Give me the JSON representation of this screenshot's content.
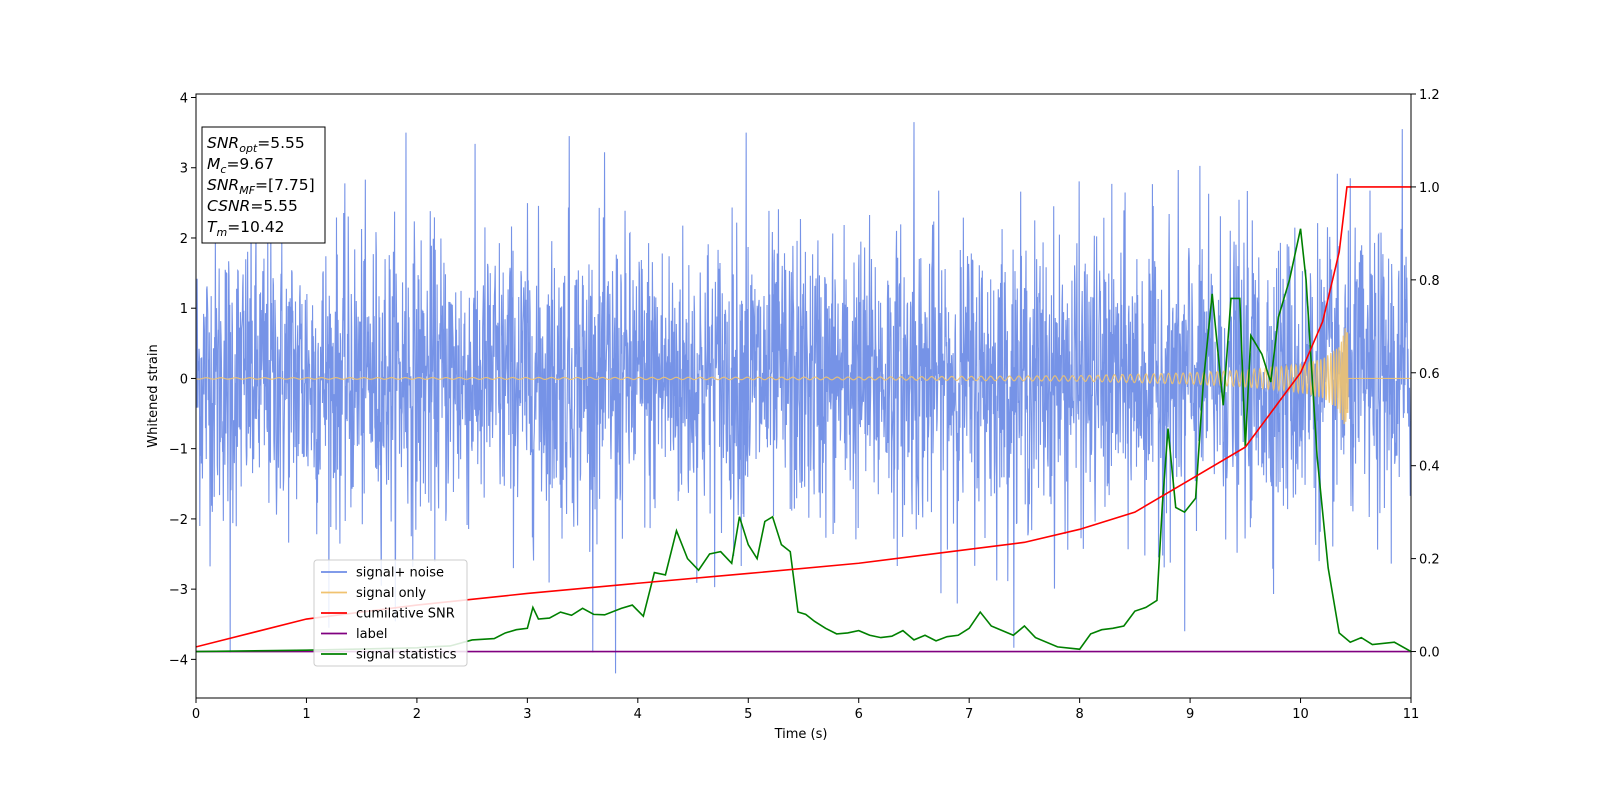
{
  "chart_data": {
    "type": "line",
    "xlabel": "Time (s)",
    "ylabel": "Whitened strain",
    "xlim": [
      0,
      11
    ],
    "ylim": [
      -4.55,
      4.05
    ],
    "ylim_right": [
      -0.1,
      1.2
    ],
    "x_ticks": [
      "0",
      "1",
      "2",
      "3",
      "4",
      "5",
      "6",
      "7",
      "8",
      "9",
      "10",
      "11"
    ],
    "y_ticks": [
      "−4",
      "−3",
      "−2",
      "−1",
      "0",
      "1",
      "2",
      "3",
      "4"
    ],
    "y_ticks_right": [
      "0.0",
      "0.2",
      "0.4",
      "0.6",
      "0.8",
      "1.0",
      "1.2"
    ],
    "grid": false,
    "legend_position": "lower-left",
    "annotation": [
      {
        "name": "SNR",
        "sub": "opt",
        "value": "=5.55"
      },
      {
        "name": "M",
        "sub": "c",
        "value": "=9.67"
      },
      {
        "name": "SNR",
        "sub": "MF",
        "value": "=[7.75]"
      },
      {
        "name": "CSNR",
        "sub": "",
        "value": "=5.55"
      },
      {
        "name": "T",
        "sub": "m",
        "value": "=10.42"
      }
    ],
    "series": [
      {
        "name": "signal+ noise",
        "axis": "left",
        "color": "#6f8de6",
        "note": "whitened noise, approx. unit variance, range about -4.2 to 3.65",
        "peaks": [
          {
            "x": 0.31,
            "y": -3.9
          },
          {
            "x": 1.9,
            "y": 3.5
          },
          {
            "x": 3.38,
            "y": 3.45
          },
          {
            "x": 3.8,
            "y": -4.2
          },
          {
            "x": 4.98,
            "y": 3.5
          },
          {
            "x": 6.5,
            "y": 3.65
          },
          {
            "x": 8.95,
            "y": -3.6
          },
          {
            "x": 10.92,
            "y": 3.55
          }
        ]
      },
      {
        "name": "signal only",
        "axis": "left",
        "color": "#f0c370",
        "note": "chirp waveform, amplitude growing to merger",
        "x": [
          0,
          2,
          4,
          6,
          8,
          9,
          9.5,
          10,
          10.2,
          10.35,
          10.42,
          10.45,
          11
        ],
        "amplitude": [
          0.01,
          0.012,
          0.015,
          0.02,
          0.04,
          0.08,
          0.12,
          0.2,
          0.28,
          0.45,
          0.8,
          0,
          0
        ]
      },
      {
        "name": "cumilative SNR",
        "axis": "right",
        "color": "#ff0000",
        "x": [
          0,
          1,
          2,
          3,
          4,
          5,
          6,
          7,
          7.5,
          8,
          8.5,
          9,
          9.5,
          10,
          10.2,
          10.35,
          10.42,
          10.43,
          11
        ],
        "values": [
          0.01,
          0.07,
          0.1,
          0.125,
          0.147,
          0.168,
          0.19,
          0.22,
          0.235,
          0.263,
          0.3,
          0.37,
          0.44,
          0.6,
          0.71,
          0.86,
          1.0,
          1.0,
          1.0
        ]
      },
      {
        "name": "label",
        "axis": "right",
        "color": "#800080",
        "x": [
          0,
          11
        ],
        "values": [
          0,
          0
        ]
      },
      {
        "name": "signal statistics",
        "axis": "right",
        "color": "#008000",
        "x": [
          0,
          1,
          2,
          2.1,
          2.3,
          2.5,
          2.7,
          2.8,
          2.9,
          3.0,
          3.05,
          3.1,
          3.2,
          3.3,
          3.4,
          3.5,
          3.6,
          3.7,
          3.85,
          3.95,
          4.05,
          4.15,
          4.25,
          4.35,
          4.45,
          4.55,
          4.65,
          4.75,
          4.85,
          4.92,
          5.0,
          5.08,
          5.15,
          5.22,
          5.3,
          5.38,
          5.45,
          5.52,
          5.6,
          5.7,
          5.8,
          5.9,
          6.0,
          6.1,
          6.2,
          6.3,
          6.4,
          6.5,
          6.6,
          6.7,
          6.8,
          6.9,
          7.0,
          7.1,
          7.2,
          7.3,
          7.4,
          7.5,
          7.6,
          7.8,
          8.0,
          8.1,
          8.2,
          8.3,
          8.4,
          8.5,
          8.6,
          8.7,
          8.75,
          8.8,
          8.87,
          8.95,
          9.05,
          9.12,
          9.2,
          9.3,
          9.37,
          9.45,
          9.5,
          9.55,
          9.65,
          9.73,
          9.8,
          9.9,
          10.0,
          10.05,
          10.15,
          10.25,
          10.35,
          10.45,
          10.55,
          10.65,
          10.85,
          11.0
        ],
        "values": [
          0.0,
          0.003,
          0.008,
          0.01,
          0.012,
          0.025,
          0.028,
          0.04,
          0.047,
          0.05,
          0.095,
          0.07,
          0.072,
          0.085,
          0.078,
          0.093,
          0.08,
          0.079,
          0.093,
          0.1,
          0.076,
          0.17,
          0.165,
          0.26,
          0.2,
          0.175,
          0.21,
          0.215,
          0.19,
          0.29,
          0.23,
          0.2,
          0.28,
          0.29,
          0.23,
          0.215,
          0.085,
          0.08,
          0.065,
          0.05,
          0.038,
          0.04,
          0.045,
          0.035,
          0.03,
          0.033,
          0.045,
          0.025,
          0.035,
          0.023,
          0.032,
          0.035,
          0.05,
          0.085,
          0.055,
          0.045,
          0.035,
          0.055,
          0.03,
          0.01,
          0.005,
          0.038,
          0.047,
          0.05,
          0.055,
          0.087,
          0.095,
          0.11,
          0.32,
          0.48,
          0.31,
          0.3,
          0.33,
          0.58,
          0.77,
          0.53,
          0.76,
          0.76,
          0.44,
          0.68,
          0.64,
          0.58,
          0.72,
          0.8,
          0.91,
          0.8,
          0.42,
          0.18,
          0.04,
          0.02,
          0.03,
          0.015,
          0.02,
          0.0
        ]
      }
    ]
  }
}
